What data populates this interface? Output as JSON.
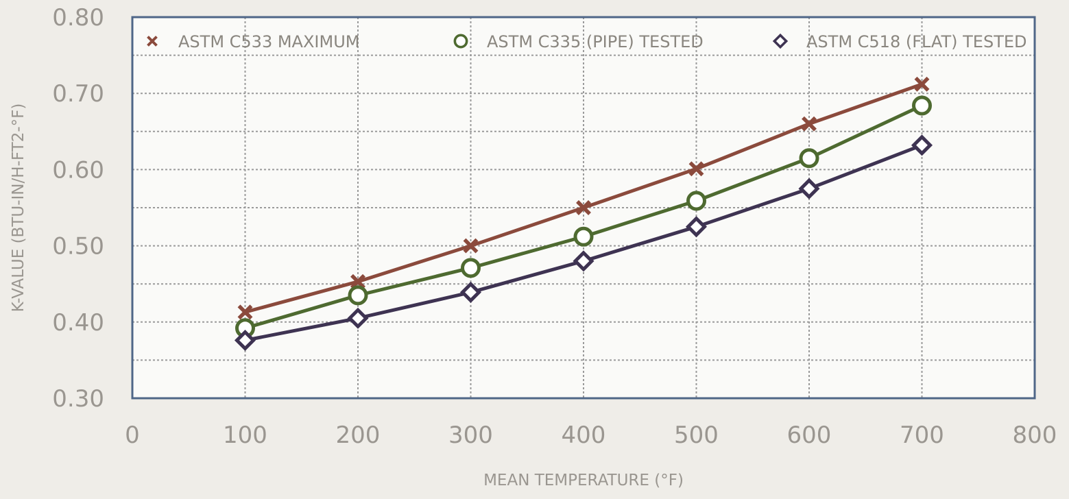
{
  "chart_data": {
    "type": "line",
    "title": "",
    "xlabel": "MEAN TEMPERATURE (°F)",
    "ylabel": "K-VALUE (BTU-IN/H-FT2-°F)",
    "xlim": [
      0,
      800
    ],
    "ylim": [
      0.3,
      0.8
    ],
    "x_ticks": [
      0,
      100,
      200,
      300,
      400,
      500,
      600,
      700,
      800
    ],
    "x_tick_labels": [
      "0",
      "100",
      "200",
      "300",
      "400",
      "500",
      "600",
      "700",
      "800"
    ],
    "y_ticks": [
      0.3,
      0.4,
      0.5,
      0.6,
      0.7,
      0.8
    ],
    "y_tick_labels": [
      "0.30",
      "0.40",
      "0.50",
      "0.60",
      "0.70",
      "0.80"
    ],
    "grid": true,
    "legend_position": "top",
    "x": [
      100,
      200,
      300,
      400,
      500,
      600,
      700
    ],
    "series": [
      {
        "name": "ASTM C533 MAXIMUM",
        "marker": "x",
        "color": "#8b4a3c",
        "values": [
          0.413,
          0.453,
          0.5,
          0.55,
          0.601,
          0.66,
          0.712
        ]
      },
      {
        "name": "ASTM C335 (PIPE) TESTED",
        "marker": "circle",
        "color": "#4e6a30",
        "values": [
          0.392,
          0.435,
          0.471,
          0.512,
          0.559,
          0.615,
          0.684
        ]
      },
      {
        "name": "ASTM C518 (FLAT) TESTED",
        "marker": "diamond",
        "color": "#3e3352",
        "values": [
          0.376,
          0.405,
          0.439,
          0.48,
          0.525,
          0.575,
          0.632
        ]
      }
    ]
  }
}
